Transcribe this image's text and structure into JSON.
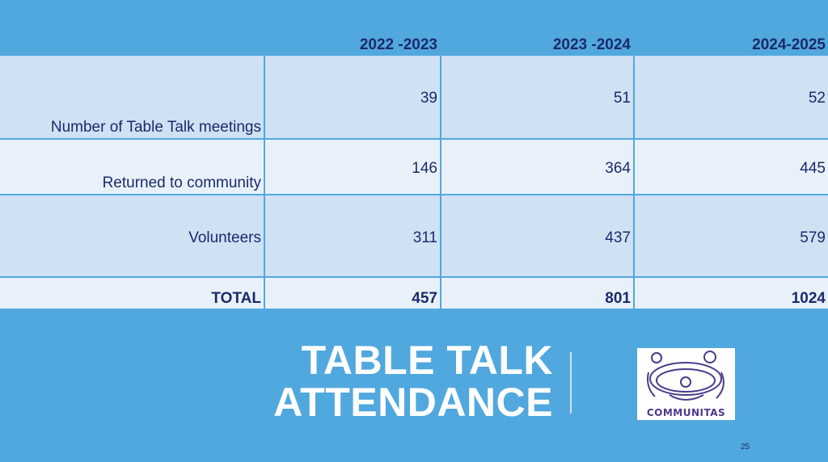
{
  "table": {
    "headers": [
      "",
      "2022 -2023",
      "2023 -2024",
      "2024-2025"
    ],
    "rows": [
      {
        "label": "Number of Table Talk meetings",
        "values": [
          "39",
          "51",
          "52"
        ]
      },
      {
        "label": "Returned to community",
        "values": [
          "146",
          "364",
          "445"
        ]
      },
      {
        "label": "Volunteers",
        "values": [
          "311",
          "437",
          "579"
        ]
      }
    ],
    "total": {
      "label": "TOTAL",
      "values": [
        "457",
        "801",
        "1024"
      ]
    }
  },
  "slide": {
    "title_line1": "TABLE TALK",
    "title_line2": "ATTENDANCE",
    "logo_text": "COMMUNITAS",
    "page_number": "25"
  },
  "colors": {
    "background": "#51a8df",
    "row_dark": "#cfe1f3",
    "row_light": "#e8f1f9",
    "text": "#1b2a6b"
  }
}
